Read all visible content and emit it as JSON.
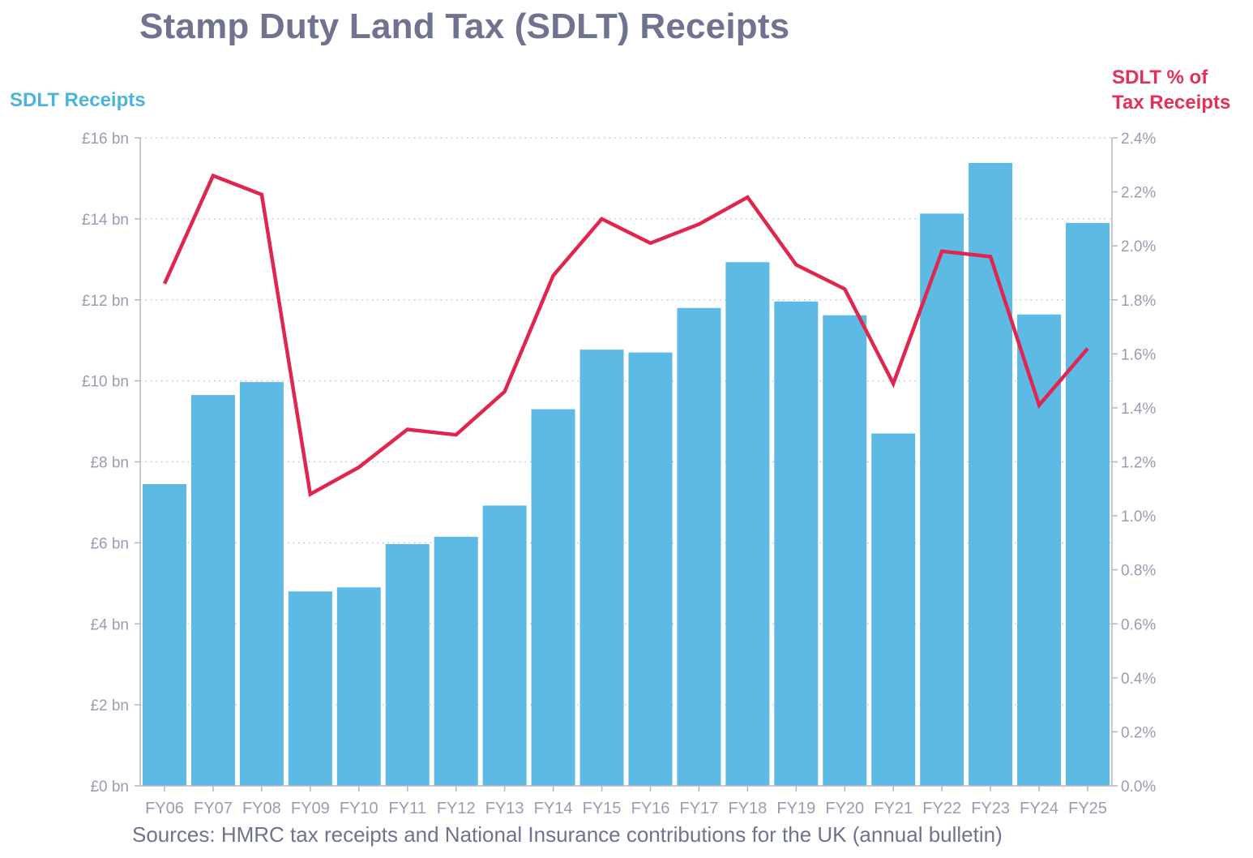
{
  "title": "Stamp Duty Land Tax (SDLT) Receipts",
  "left_axis_label": "SDLT Receipts",
  "right_axis_label_line1": "SDLT % of",
  "right_axis_label_line2": "Tax Receipts",
  "source": "Sources: HMRC tax receipts and National Insurance contributions for the UK (annual bulletin)",
  "colors": {
    "bars": "#5cbae5",
    "line": "#e0264f",
    "text": "#6f7390",
    "ticks": "#9a9db2"
  },
  "chart_data": {
    "type": "bar",
    "title": "Stamp Duty Land Tax (SDLT) Receipts",
    "categories": [
      "FY06",
      "FY07",
      "FY08",
      "FY09",
      "FY10",
      "FY11",
      "FY12",
      "FY13",
      "FY14",
      "FY15",
      "FY16",
      "FY17",
      "FY18",
      "FY19",
      "FY20",
      "FY21",
      "FY22",
      "FY23",
      "FY24",
      "FY25"
    ],
    "series": [
      {
        "name": "SDLT Receipts",
        "axis": "left",
        "type": "bar",
        "values": [
          7.45,
          9.65,
          9.97,
          4.8,
          4.9,
          5.97,
          6.15,
          6.92,
          9.3,
          10.77,
          10.7,
          11.8,
          12.93,
          11.96,
          11.62,
          8.7,
          14.13,
          15.38,
          11.64,
          13.9
        ]
      },
      {
        "name": "SDLT % of Tax Receipts",
        "axis": "right",
        "type": "line",
        "values": [
          1.86,
          2.26,
          2.19,
          1.08,
          1.18,
          1.32,
          1.3,
          1.46,
          1.89,
          2.1,
          2.01,
          2.08,
          2.18,
          1.93,
          1.84,
          1.49,
          1.98,
          1.96,
          1.41,
          1.62
        ]
      }
    ],
    "ylim_left": [
      0,
      16
    ],
    "ylim_right": [
      0,
      2.4
    ],
    "yticks_left": [
      "£0 bn",
      "£2 bn",
      "£4 bn",
      "£6 bn",
      "£8 bn",
      "£10 bn",
      "£12 bn",
      "£14 bn",
      "£16 bn"
    ],
    "yticks_right": [
      "0.0%",
      "0.2%",
      "0.4%",
      "0.6%",
      "0.8%",
      "1.0%",
      "1.2%",
      "1.4%",
      "1.6%",
      "1.8%",
      "2.0%",
      "2.2%",
      "2.4%"
    ],
    "grid": true
  }
}
